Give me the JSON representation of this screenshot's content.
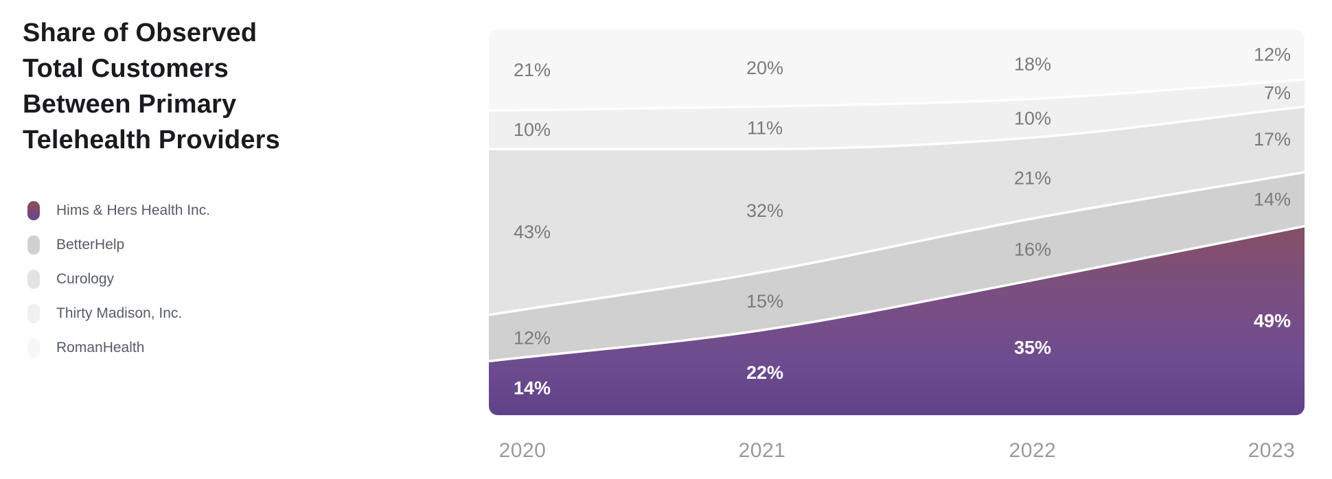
{
  "title": {
    "lines": [
      "Share of Observed",
      "Total Customers",
      "Between Primary",
      "Telehealth Providers"
    ]
  },
  "legend": {
    "position": "left",
    "items": [
      {
        "label": "Hims & Hers Health Inc."
      },
      {
        "label": "BetterHelp"
      },
      {
        "label": "Curology"
      },
      {
        "label": "Thirty Madison, Inc."
      },
      {
        "label": "RomanHealth"
      }
    ]
  },
  "chart_data": {
    "type": "area",
    "variant": "stacked-percent",
    "stack_order": "first-series-at-bottom",
    "x": [
      "2020",
      "2021",
      "2022",
      "2023"
    ],
    "series": [
      {
        "name": "Hims & Hers Health Inc.",
        "key": "hims-hers",
        "values": [
          14,
          22,
          35,
          49
        ],
        "labels": [
          "14%",
          "22%",
          "35%",
          "49%"
        ],
        "fill": "gradient-purple",
        "label_color": "#ffffff",
        "label_bold": true
      },
      {
        "name": "BetterHelp",
        "key": "betterhelp",
        "values": [
          12,
          15,
          16,
          14
        ],
        "labels": [
          "12%",
          "15%",
          "16%",
          "14%"
        ],
        "fill": "#d0d0d1",
        "label_color": "#7a7a7d",
        "label_bold": false
      },
      {
        "name": "Curology",
        "key": "curology",
        "values": [
          43,
          32,
          21,
          17
        ],
        "labels": [
          "43%",
          "32%",
          "21%",
          "17%"
        ],
        "fill": "#e3e3e4",
        "label_color": "#7a7a7d",
        "label_bold": false
      },
      {
        "name": "Thirty Madison, Inc.",
        "key": "thirty-madison",
        "values": [
          10,
          11,
          10,
          7
        ],
        "labels": [
          "10%",
          "11%",
          "10%",
          "7%"
        ],
        "fill": "#f0f0f1",
        "label_color": "#7a7a7d",
        "label_bold": false
      },
      {
        "name": "RomanHealth",
        "key": "romanhealth",
        "values": [
          21,
          20,
          18,
          12
        ],
        "labels": [
          "21%",
          "20%",
          "18%",
          "12%"
        ],
        "fill": "#f7f7f8",
        "label_color": "#7a7a7d",
        "label_bold": false
      }
    ],
    "ylim": [
      0,
      100
    ],
    "grid": false,
    "axis_lines": false,
    "separator_color": "#ffffff"
  },
  "colors": {
    "background": "#ffffff",
    "title_text": "#1a1a1f",
    "legend_text": "#565b66",
    "axis_text": "#9a9a9a",
    "band_label_gray": "#7a7a7d",
    "band_label_white": "#ffffff",
    "separator": "#ffffff",
    "purple_gradient_stops": [
      "#8C4F53",
      "#7A4F80",
      "#6E4C90",
      "#5F4187"
    ],
    "legend_swatch_gradient": [
      "#8D5156",
      "#6A4392"
    ]
  }
}
